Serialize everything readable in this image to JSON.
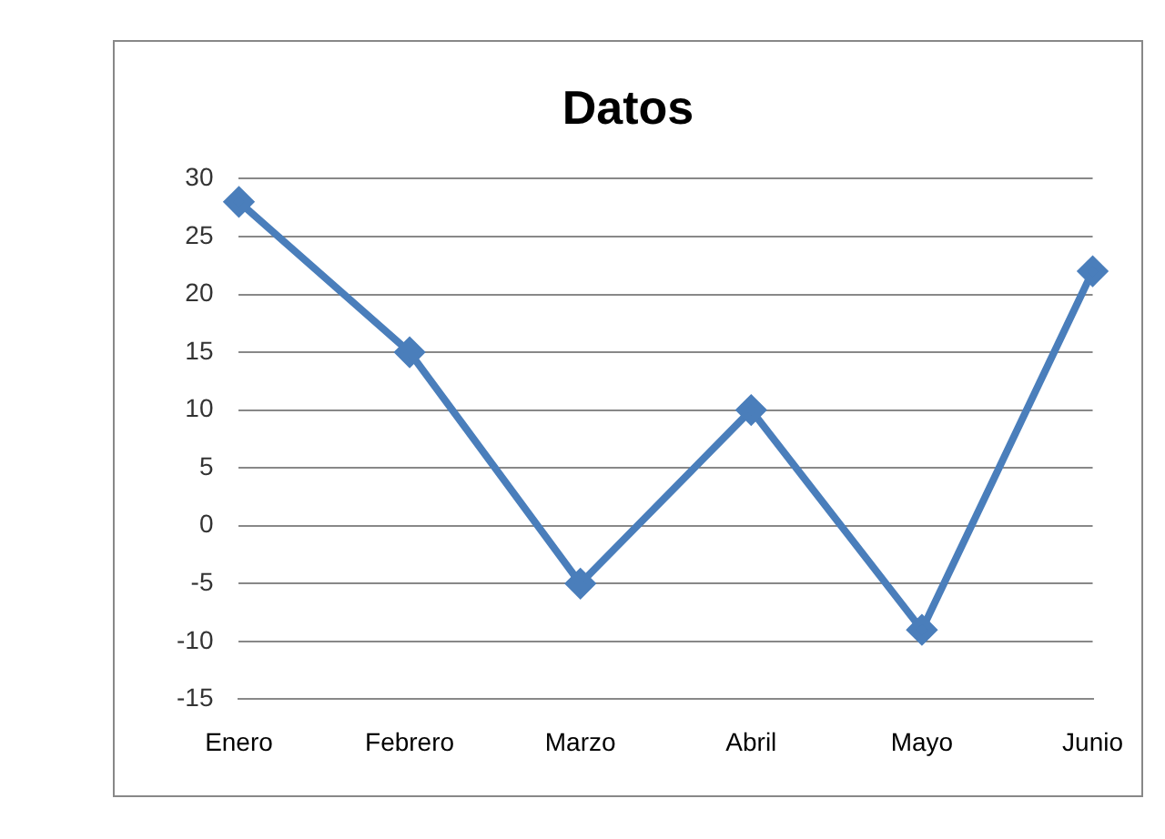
{
  "chart_data": {
    "type": "line",
    "title": "Datos",
    "categories": [
      "Enero",
      "Febrero",
      "Marzo",
      "Abril",
      "Mayo",
      "Junio"
    ],
    "series": [
      {
        "color": "#4a7ebb",
        "values": [
          28,
          15,
          -5,
          10,
          -9,
          22
        ]
      }
    ],
    "ylim": [
      -15,
      30
    ],
    "yticks": [
      -15,
      -10,
      -5,
      0,
      5,
      10,
      15,
      20,
      25,
      30
    ],
    "grid": "y",
    "legend": false,
    "marker": "diamond",
    "line_style": "solid"
  }
}
